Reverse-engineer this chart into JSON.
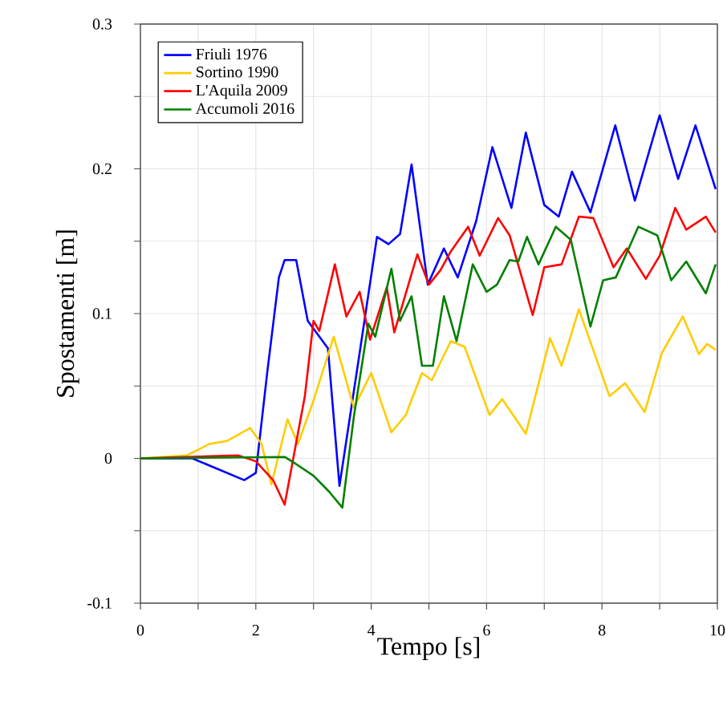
{
  "chart_data": {
    "type": "line",
    "xlabel": "Tempo [s]",
    "ylabel": "Spostamenti [m]",
    "xlim": [
      0,
      10
    ],
    "ylim": [
      -0.1,
      0.3
    ],
    "xticks": [
      0,
      {
        "value": 1,
        "label": null
      },
      2,
      {
        "value": 3,
        "label": null
      },
      4,
      {
        "value": 5,
        "label": null
      },
      6,
      {
        "value": 7,
        "label": null
      },
      8,
      {
        "value": 9,
        "label": null
      },
      10
    ],
    "yticks": [
      -0.1,
      {
        "value": -0.05,
        "label": null
      },
      0,
      {
        "value": 0.05,
        "label": null
      },
      0.1,
      {
        "value": 0.15,
        "label": null
      },
      0.2,
      {
        "value": 0.25,
        "label": null
      },
      0.3
    ],
    "grid": true,
    "legend": "top left",
    "line_style": "solid",
    "marker": "none",
    "series": [
      {
        "name": "Friuli 1976",
        "color": "#0000ff",
        "x": [
          0,
          0.9,
          1.2,
          1.5,
          1.8,
          2.0,
          2.2,
          2.4,
          2.5,
          2.7,
          2.9,
          3.25,
          3.45,
          3.8,
          4.1,
          4.3,
          4.5,
          4.7,
          4.98,
          5.26,
          5.5,
          5.82,
          6.1,
          6.43,
          6.68,
          7.0,
          7.25,
          7.48,
          7.8,
          8.23,
          8.57,
          9.0,
          9.32,
          9.62,
          9.97
        ],
        "values": [
          0,
          0,
          -0.005,
          -0.01,
          -0.015,
          -0.01,
          0.06,
          0.125,
          0.137,
          0.137,
          0.095,
          0.076,
          -0.019,
          0.073,
          0.153,
          0.148,
          0.155,
          0.203,
          0.12,
          0.145,
          0.125,
          0.164,
          0.215,
          0.173,
          0.225,
          0.175,
          0.167,
          0.198,
          0.17,
          0.23,
          0.178,
          0.237,
          0.193,
          0.23,
          0.186
        ]
      },
      {
        "name": "Sortino 1990",
        "color": "#ffcc00",
        "x": [
          0,
          0.8,
          1.2,
          1.5,
          1.9,
          2.1,
          2.27,
          2.55,
          2.73,
          3.0,
          3.35,
          3.7,
          4.0,
          4.35,
          4.6,
          4.88,
          5.05,
          5.38,
          5.62,
          6.05,
          6.27,
          6.68,
          7.1,
          7.3,
          7.6,
          8.13,
          8.4,
          8.74,
          9.04,
          9.4,
          9.68,
          9.82,
          9.97
        ],
        "values": [
          0,
          0.002,
          0.01,
          0.012,
          0.021,
          0.01,
          -0.018,
          0.027,
          0.01,
          0.04,
          0.084,
          0.035,
          0.059,
          0.018,
          0.03,
          0.059,
          0.054,
          0.081,
          0.077,
          0.03,
          0.041,
          0.017,
          0.083,
          0.064,
          0.103,
          0.043,
          0.052,
          0.032,
          0.073,
          0.098,
          0.072,
          0.079,
          0.075
        ]
      },
      {
        "name": "L'Aquila 2009",
        "color": "#ff0000",
        "x": [
          0,
          1.7,
          2.0,
          2.3,
          2.5,
          2.85,
          3.0,
          3.1,
          3.37,
          3.57,
          3.8,
          3.98,
          4.27,
          4.4,
          4.8,
          5.0,
          5.2,
          5.38,
          5.68,
          5.88,
          6.2,
          6.4,
          6.8,
          7.0,
          7.3,
          7.6,
          7.85,
          8.2,
          8.43,
          8.76,
          9.0,
          9.27,
          9.46,
          9.8,
          9.97
        ],
        "values": [
          0,
          0.002,
          -0.002,
          -0.015,
          -0.032,
          0.043,
          0.095,
          0.088,
          0.134,
          0.098,
          0.115,
          0.082,
          0.118,
          0.087,
          0.141,
          0.12,
          0.13,
          0.143,
          0.16,
          0.14,
          0.166,
          0.154,
          0.099,
          0.132,
          0.134,
          0.167,
          0.166,
          0.132,
          0.145,
          0.124,
          0.14,
          0.173,
          0.158,
          0.167,
          0.156
        ]
      },
      {
        "name": "Accumoli 2016",
        "color": "#008000",
        "x": [
          0,
          2.5,
          2.7,
          3.0,
          3.27,
          3.5,
          3.7,
          3.95,
          4.07,
          4.35,
          4.5,
          4.7,
          4.88,
          5.07,
          5.26,
          5.48,
          5.76,
          6.0,
          6.18,
          6.4,
          6.55,
          6.7,
          6.9,
          7.2,
          7.46,
          7.8,
          8.02,
          8.24,
          8.63,
          8.96,
          9.2,
          9.46,
          9.8,
          9.97
        ],
        "values": [
          0,
          0.001,
          -0.004,
          -0.012,
          -0.023,
          -0.034,
          0.029,
          0.093,
          0.084,
          0.131,
          0.095,
          0.112,
          0.064,
          0.064,
          0.112,
          0.081,
          0.134,
          0.115,
          0.12,
          0.137,
          0.136,
          0.153,
          0.134,
          0.16,
          0.151,
          0.091,
          0.123,
          0.125,
          0.16,
          0.154,
          0.123,
          0.136,
          0.114,
          0.134
        ]
      }
    ]
  }
}
